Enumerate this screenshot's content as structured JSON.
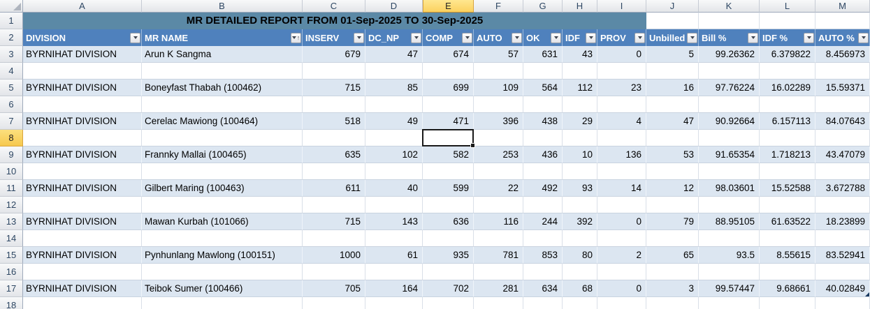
{
  "sheet": {
    "title_text": "MR DETAILED REPORT FROM 01-Sep-2025 TO 30-Sep-2025",
    "title_span": "A1:I1",
    "column_letters": [
      "A",
      "B",
      "C",
      "D",
      "E",
      "F",
      "G",
      "H",
      "I",
      "J",
      "K",
      "L",
      "M"
    ],
    "row_numbers": [
      "1",
      "2",
      "3",
      "4",
      "5",
      "6",
      "7",
      "8",
      "9",
      "10",
      "11",
      "12",
      "13",
      "14",
      "15",
      "16",
      "17",
      "18"
    ],
    "selected": {
      "column": "E",
      "row": "8",
      "cell": "E8"
    },
    "headers": [
      {
        "label": "DIVISION",
        "filter": "dropdown",
        "sorted": false
      },
      {
        "label": "MR NAME",
        "filter": "dropdown",
        "sorted": true
      },
      {
        "label": "INSERV",
        "filter": "dropdown",
        "sorted": false
      },
      {
        "label": "DC_NP",
        "filter": "dropdown",
        "sorted": false
      },
      {
        "label": "COMP",
        "filter": "dropdown",
        "sorted": false
      },
      {
        "label": "AUTO",
        "filter": "dropdown",
        "sorted": false
      },
      {
        "label": "OK",
        "filter": "dropdown",
        "sorted": false
      },
      {
        "label": "IDF",
        "filter": "dropdown",
        "sorted": false
      },
      {
        "label": "PROV",
        "filter": "dropdown",
        "sorted": false
      },
      {
        "label": "Unbilled",
        "filter": "dropdown",
        "sorted": false
      },
      {
        "label": "Bill %",
        "filter": "dropdown",
        "sorted": false
      },
      {
        "label": "IDF %",
        "filter": "dropdown",
        "sorted": false
      },
      {
        "label": "AUTO %",
        "filter": "dropdown",
        "sorted": false
      }
    ],
    "rows": [
      {
        "n": "1",
        "kind": "title"
      },
      {
        "n": "2",
        "kind": "header"
      },
      {
        "n": "3",
        "kind": "data",
        "cells": [
          "BYRNIHAT DIVISION",
          "Arun K Sangma",
          "679",
          "47",
          "674",
          "57",
          "631",
          "43",
          "0",
          "5",
          "99.26362",
          "6.379822",
          "8.456973"
        ]
      },
      {
        "n": "4",
        "kind": "empty"
      },
      {
        "n": "5",
        "kind": "data",
        "cells": [
          "BYRNIHAT DIVISION",
          "Boneyfast Thabah (100462)",
          "715",
          "85",
          "699",
          "109",
          "564",
          "112",
          "23",
          "16",
          "97.76224",
          "16.02289",
          "15.59371"
        ]
      },
      {
        "n": "6",
        "kind": "empty"
      },
      {
        "n": "7",
        "kind": "data",
        "cells": [
          "BYRNIHAT DIVISION",
          "Cerelac Mawiong (100464)",
          "518",
          "49",
          "471",
          "396",
          "438",
          "29",
          "4",
          "47",
          "90.92664",
          "6.157113",
          "84.07643"
        ]
      },
      {
        "n": "8",
        "kind": "empty",
        "selected": true
      },
      {
        "n": "9",
        "kind": "data",
        "cells": [
          "BYRNIHAT DIVISION",
          "Frannky Mallai (100465)",
          "635",
          "102",
          "582",
          "253",
          "436",
          "10",
          "136",
          "53",
          "91.65354",
          "1.718213",
          "43.47079"
        ]
      },
      {
        "n": "10",
        "kind": "empty"
      },
      {
        "n": "11",
        "kind": "data",
        "cells": [
          "BYRNIHAT DIVISION",
          "Gilbert Maring (100463)",
          "611",
          "40",
          "599",
          "22",
          "492",
          "93",
          "14",
          "12",
          "98.03601",
          "15.52588",
          "3.672788"
        ]
      },
      {
        "n": "12",
        "kind": "empty"
      },
      {
        "n": "13",
        "kind": "data",
        "cells": [
          "BYRNIHAT DIVISION",
          "Mawan Kurbah (101066)",
          "715",
          "143",
          "636",
          "116",
          "244",
          "392",
          "0",
          "79",
          "88.95105",
          "61.63522",
          "18.23899"
        ]
      },
      {
        "n": "14",
        "kind": "empty"
      },
      {
        "n": "15",
        "kind": "data",
        "cells": [
          "BYRNIHAT DIVISION",
          "Pynhunlang Mawlong (100151)",
          "1000",
          "61",
          "935",
          "781",
          "853",
          "80",
          "2",
          "65",
          "93.5",
          "8.55615",
          "83.52941"
        ]
      },
      {
        "n": "16",
        "kind": "empty"
      },
      {
        "n": "17",
        "kind": "data",
        "end_marker": true,
        "cells": [
          "BYRNIHAT DIVISION",
          "Teibok Sumer (100466)",
          "705",
          "164",
          "702",
          "281",
          "634",
          "68",
          "0",
          "3",
          "99.57447",
          "9.68661",
          "40.02849"
        ]
      },
      {
        "n": "18",
        "kind": "empty"
      }
    ],
    "colors": {
      "title_bg": "#5B89A6",
      "header_bg": "#4F81BD",
      "header_text": "#FFFFFF",
      "band_fill": "#DCE6F1",
      "selected_header_fill_top": "#FFE78F",
      "selected_header_fill": "#FBD15F",
      "grid_line": "#C9D3E0",
      "header_strip_text": "#2E4763",
      "selection_border": "#1A1A1A",
      "end_marker": "#17375E"
    }
  }
}
